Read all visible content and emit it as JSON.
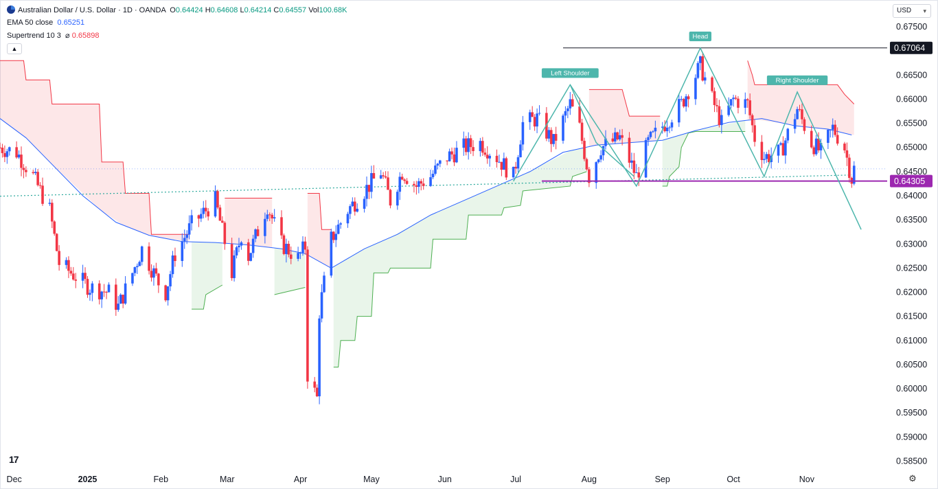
{
  "header": {
    "symbol_title": "Australian Dollar / U.S. Dollar · 1D · OANDA",
    "ohlc": {
      "o_label": "O",
      "o_value": "0.64424",
      "h_label": "H",
      "h_value": "0.64608",
      "l_label": "L",
      "l_value": "0.64214",
      "c_label": "C",
      "c_value": "0.64557",
      "vol_label": "Vol",
      "vol_value": "100.68K"
    },
    "indicators": [
      {
        "name": "EMA 50 close",
        "value": "0.65251"
      },
      {
        "name": "Supertrend 10 3",
        "flag": "⌀",
        "value": "0.65898"
      }
    ],
    "collapse_icon": "chevron-up-icon"
  },
  "currency_select": {
    "value": "USD",
    "icon": "chevron-down-icon"
  },
  "colors": {
    "up": "#2962ff",
    "down": "#f23645",
    "ema": "#2962ff",
    "supertrend_down": "#f23645",
    "supertrend_up": "#4caf50",
    "pattern": "#4db6ac",
    "neckline": "#9c27b0",
    "head_line": "#131722"
  },
  "chart_data": {
    "type": "candlestick",
    "y_axis": {
      "ticks": [
        "0.67500",
        "0.66500",
        "0.66000",
        "0.65500",
        "0.65000",
        "0.64500",
        "0.64000",
        "0.63500",
        "0.63000",
        "0.62500",
        "0.62000",
        "0.61500",
        "0.61000",
        "0.60500",
        "0.60000",
        "0.59500",
        "0.59000",
        "0.58500"
      ],
      "range": [
        0.5835,
        0.678
      ]
    },
    "x_axis": {
      "labels": [
        "Dec",
        "2025",
        "Feb",
        "Mar",
        "Apr",
        "May",
        "Jun",
        "Jul",
        "Aug",
        "Sep",
        "Oct",
        "Nov"
      ],
      "range": [
        "2024-11-25",
        "2025-12-05"
      ]
    },
    "price_labels": [
      {
        "value": "0.67064",
        "style": "dark"
      },
      {
        "value": "0.64305",
        "style": "purple"
      }
    ],
    "annotations": [
      {
        "text": "Left Shoulder",
        "date": "2025-07-24",
        "price": 0.663
      },
      {
        "text": "Head",
        "date": "2025-09-17",
        "price": 0.6706
      },
      {
        "text": "Right Shoulder",
        "date": "2025-10-28",
        "price": 0.6615
      }
    ],
    "horizontal_lines": [
      {
        "price": 0.67064,
        "from": "2025-07-21",
        "style": "head"
      },
      {
        "price": 0.64305,
        "from": "2025-07-12",
        "style": "neckline"
      }
    ],
    "pattern_path": [
      [
        "2025-06-30",
        0.643
      ],
      [
        "2025-07-24",
        0.663
      ],
      [
        "2025-08-21",
        0.642
      ],
      [
        "2025-09-17",
        0.6706
      ],
      [
        "2025-10-14",
        0.644
      ],
      [
        "2025-10-28",
        0.6615
      ],
      [
        "2025-11-24",
        0.633
      ]
    ],
    "swing_path": [
      [
        "2025-07-24",
        0.663
      ],
      [
        "2025-08-04",
        0.651
      ],
      [
        "2025-08-20",
        0.644
      ]
    ],
    "trendline": [
      [
        "2024-11-25",
        0.6399
      ],
      [
        "2025-11-20",
        0.6443
      ]
    ],
    "ema": [
      [
        "2024-11-25",
        0.656
      ],
      [
        "2024-12-06",
        0.652
      ],
      [
        "2024-12-16",
        0.647
      ],
      [
        "2024-12-30",
        0.64
      ],
      [
        "2025-01-13",
        0.6345
      ],
      [
        "2025-01-27",
        0.6318
      ],
      [
        "2025-02-10",
        0.6305
      ],
      [
        "2025-02-24",
        0.6303
      ],
      [
        "2025-03-10",
        0.6298
      ],
      [
        "2025-03-24",
        0.629
      ],
      [
        "2025-04-03",
        0.628
      ],
      [
        "2025-04-14",
        0.625
      ],
      [
        "2025-04-28",
        0.629
      ],
      [
        "2025-05-12",
        0.632
      ],
      [
        "2025-05-26",
        0.636
      ],
      [
        "2025-06-09",
        0.639
      ],
      [
        "2025-06-23",
        0.642
      ],
      [
        "2025-07-07",
        0.645
      ],
      [
        "2025-07-21",
        0.649
      ],
      [
        "2025-08-04",
        0.6505
      ],
      [
        "2025-08-18",
        0.651
      ],
      [
        "2025-09-01",
        0.6515
      ],
      [
        "2025-09-15",
        0.6535
      ],
      [
        "2025-09-29",
        0.6552
      ],
      [
        "2025-10-13",
        0.656
      ],
      [
        "2025-10-27",
        0.6545
      ],
      [
        "2025-11-10",
        0.6538
      ],
      [
        "2025-11-20",
        0.6526
      ]
    ],
    "supertrend": [
      {
        "dir": "down",
        "pts": [
          [
            "2024-11-25",
            0.668
          ],
          [
            "2024-12-05",
            0.668
          ],
          [
            "2024-12-06",
            0.664
          ],
          [
            "2024-12-16",
            0.664
          ],
          [
            "2024-12-17",
            0.659
          ],
          [
            "2025-01-06",
            0.659
          ],
          [
            "2025-01-07",
            0.647
          ],
          [
            "2025-01-16",
            0.647
          ],
          [
            "2025-01-17",
            0.6405
          ],
          [
            "2025-01-27",
            0.6405
          ],
          [
            "2025-01-28",
            0.632
          ],
          [
            "2025-02-13",
            0.632
          ]
        ]
      },
      {
        "dir": "up",
        "pts": [
          [
            "2025-02-14",
            0.6165
          ],
          [
            "2025-02-19",
            0.6165
          ],
          [
            "2025-02-20",
            0.6195
          ],
          [
            "2025-02-27",
            0.6215
          ]
        ]
      },
      {
        "dir": "down",
        "pts": [
          [
            "2025-02-28",
            0.6395
          ],
          [
            "2025-03-20",
            0.6395
          ]
        ]
      },
      {
        "dir": "up",
        "pts": [
          [
            "2025-03-21",
            0.6195
          ],
          [
            "2025-04-03",
            0.621
          ]
        ]
      },
      {
        "dir": "down",
        "pts": [
          [
            "2025-04-04",
            0.6405
          ],
          [
            "2025-04-09",
            0.6405
          ],
          [
            "2025-04-10",
            0.633
          ],
          [
            "2025-04-14",
            0.633
          ]
        ]
      },
      {
        "dir": "up",
        "pts": [
          [
            "2025-04-15",
            0.6045
          ],
          [
            "2025-04-17",
            0.6045
          ],
          [
            "2025-04-18",
            0.61
          ],
          [
            "2025-04-24",
            0.61
          ],
          [
            "2025-04-25",
            0.615
          ],
          [
            "2025-05-01",
            0.615
          ],
          [
            "2025-05-02",
            0.624
          ],
          [
            "2025-05-08",
            0.624
          ],
          [
            "2025-05-09",
            0.625
          ],
          [
            "2025-05-26",
            0.625
          ],
          [
            "2025-05-27",
            0.631
          ],
          [
            "2025-06-10",
            0.631
          ],
          [
            "2025-06-11",
            0.636
          ],
          [
            "2025-06-25",
            0.636
          ],
          [
            "2025-06-26",
            0.6375
          ],
          [
            "2025-07-03",
            0.638
          ],
          [
            "2025-07-04",
            0.641
          ],
          [
            "2025-07-24",
            0.642
          ],
          [
            "2025-07-25",
            0.644
          ],
          [
            "2025-07-31",
            0.645
          ]
        ]
      },
      {
        "dir": "down",
        "pts": [
          [
            "2025-08-01",
            0.662
          ],
          [
            "2025-08-15",
            0.662
          ],
          [
            "2025-08-18",
            0.6565
          ],
          [
            "2025-08-31",
            0.6565
          ]
        ]
      },
      {
        "dir": "up",
        "pts": [
          [
            "2025-09-01",
            0.642
          ],
          [
            "2025-09-03",
            0.642
          ],
          [
            "2025-09-04",
            0.644
          ],
          [
            "2025-09-08",
            0.646
          ],
          [
            "2025-09-09",
            0.65
          ],
          [
            "2025-09-12",
            0.653
          ],
          [
            "2025-09-15",
            0.6533
          ],
          [
            "2025-10-06",
            0.6533
          ]
        ]
      },
      {
        "dir": "down",
        "pts": [
          [
            "2025-10-07",
            0.668
          ],
          [
            "2025-10-09",
            0.665
          ],
          [
            "2025-10-10",
            0.663
          ],
          [
            "2025-11-14",
            0.663
          ],
          [
            "2025-11-17",
            0.661
          ],
          [
            "2025-11-21",
            0.659
          ]
        ]
      }
    ],
    "candles_anchors": [
      [
        "2024-11-25",
        0.65
      ],
      [
        "2024-12-02",
        0.649
      ],
      [
        "2024-12-09",
        0.644
      ],
      [
        "2024-12-16",
        0.637
      ],
      [
        "2024-12-20",
        0.626
      ],
      [
        "2025-01-02",
        0.621
      ],
      [
        "2025-01-10",
        0.62
      ],
      [
        "2025-01-14",
        0.617
      ],
      [
        "2025-01-20",
        0.624
      ],
      [
        "2025-01-24",
        0.629
      ],
      [
        "2025-01-31",
        0.622
      ],
      [
        "2025-02-03",
        0.62
      ],
      [
        "2025-02-07",
        0.628
      ],
      [
        "2025-02-14",
        0.634
      ],
      [
        "2025-02-24",
        0.639
      ],
      [
        "2025-03-03",
        0.624
      ],
      [
        "2025-03-07",
        0.632
      ],
      [
        "2025-03-10",
        0.6275
      ],
      [
        "2025-03-18",
        0.638
      ],
      [
        "2025-03-24",
        0.63
      ],
      [
        "2025-03-31",
        0.627
      ],
      [
        "2025-04-03",
        0.6295
      ],
      [
        "2025-04-04",
        0.603
      ],
      [
        "2025-04-08",
        0.598
      ],
      [
        "2025-04-09",
        0.616
      ],
      [
        "2025-04-14",
        0.631
      ],
      [
        "2025-04-21",
        0.637
      ],
      [
        "2025-04-28",
        0.641
      ],
      [
        "2025-05-05",
        0.645
      ],
      [
        "2025-05-09",
        0.639
      ],
      [
        "2025-05-14",
        0.645
      ],
      [
        "2025-05-20",
        0.642
      ],
      [
        "2025-05-26",
        0.644
      ],
      [
        "2025-06-02",
        0.648
      ],
      [
        "2025-06-09",
        0.65
      ],
      [
        "2025-06-16",
        0.651
      ],
      [
        "2025-06-23",
        0.648
      ],
      [
        "2025-06-30",
        0.644
      ],
      [
        "2025-07-04",
        0.655
      ],
      [
        "2025-07-10",
        0.656
      ],
      [
        "2025-07-17",
        0.651
      ],
      [
        "2025-07-24",
        0.659
      ],
      [
        "2025-07-28",
        0.654
      ],
      [
        "2025-08-01",
        0.644
      ],
      [
        "2025-08-06",
        0.65
      ],
      [
        "2025-08-14",
        0.652
      ],
      [
        "2025-08-21",
        0.644
      ],
      [
        "2025-08-26",
        0.651
      ],
      [
        "2025-09-02",
        0.655
      ],
      [
        "2025-09-09",
        0.659
      ],
      [
        "2025-09-17",
        0.667
      ],
      [
        "2025-09-22",
        0.66
      ],
      [
        "2025-09-26",
        0.655
      ],
      [
        "2025-10-01",
        0.66
      ],
      [
        "2025-10-07",
        0.659
      ],
      [
        "2025-10-10",
        0.652
      ],
      [
        "2025-10-14",
        0.648
      ],
      [
        "2025-10-21",
        0.649
      ],
      [
        "2025-10-28",
        0.658
      ],
      [
        "2025-11-03",
        0.651
      ],
      [
        "2025-11-07",
        0.649
      ],
      [
        "2025-11-12",
        0.654
      ],
      [
        "2025-11-17",
        0.65
      ],
      [
        "2025-11-20",
        0.6435
      ],
      [
        "2025-11-21",
        0.6456
      ]
    ]
  }
}
